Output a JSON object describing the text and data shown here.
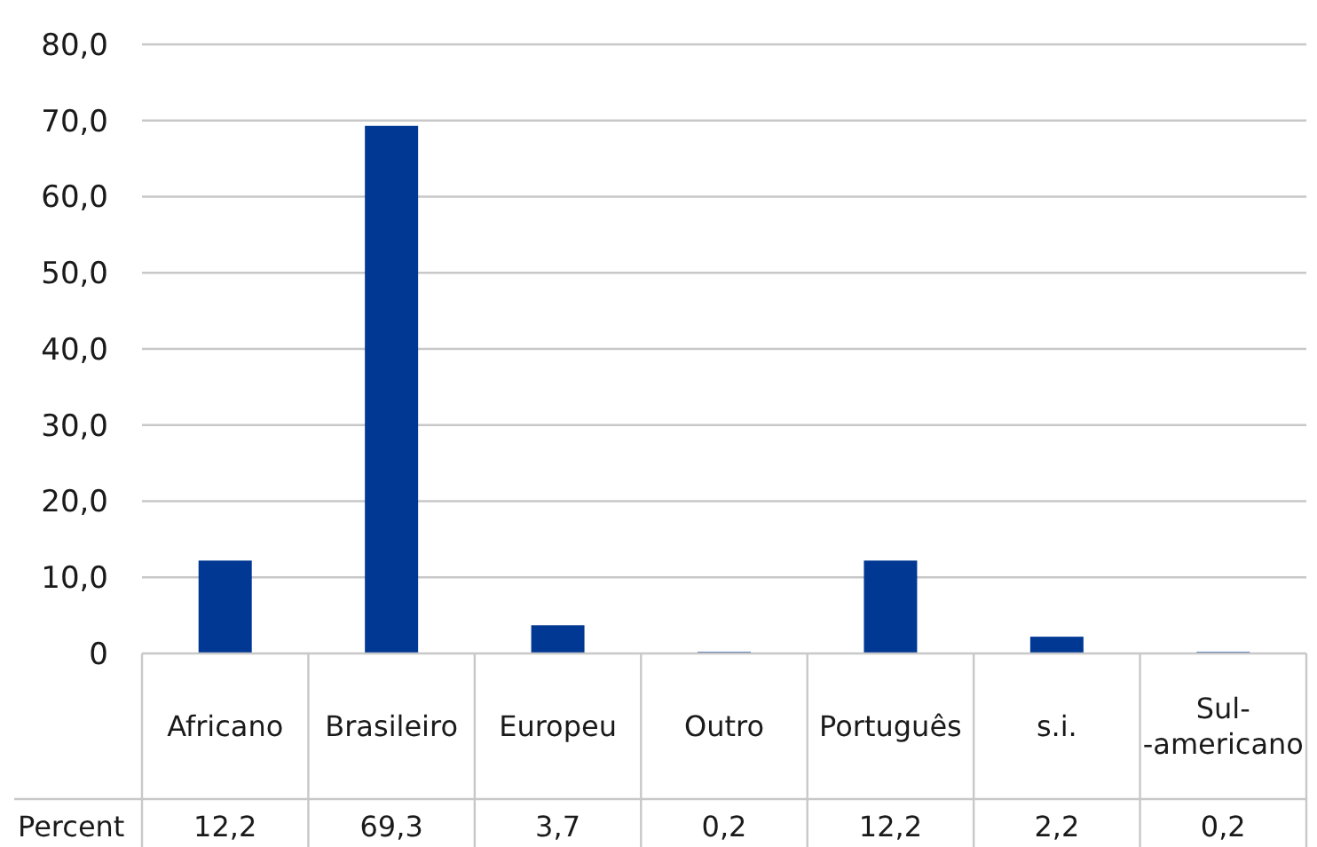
{
  "chart_data": {
    "type": "bar",
    "categories": [
      "Africano",
      "Brasileiro",
      "Europeu",
      "Outro",
      "Português",
      "s.i.",
      "Sul-\n-americano"
    ],
    "series": [
      {
        "name": "Percent",
        "color": "#003893",
        "values": [
          12.2,
          69.3,
          3.7,
          0.2,
          12.2,
          2.2,
          0.2
        ],
        "value_labels": [
          "12,2",
          "69,3",
          "3,7",
          "0,2",
          "12,2",
          "2,2",
          "0,2"
        ]
      }
    ],
    "ylim": [
      0,
      80
    ],
    "yticks": [
      {
        "value": 0,
        "label": "0"
      },
      {
        "value": 10,
        "label": "10,0"
      },
      {
        "value": 20,
        "label": "20,0"
      },
      {
        "value": 30,
        "label": "30,0"
      },
      {
        "value": 40,
        "label": "40,0"
      },
      {
        "value": 50,
        "label": "50,0"
      },
      {
        "value": 60,
        "label": "60,0"
      },
      {
        "value": 70,
        "label": "70,0"
      },
      {
        "value": 80,
        "label": "80,0"
      }
    ],
    "grid": "y"
  }
}
